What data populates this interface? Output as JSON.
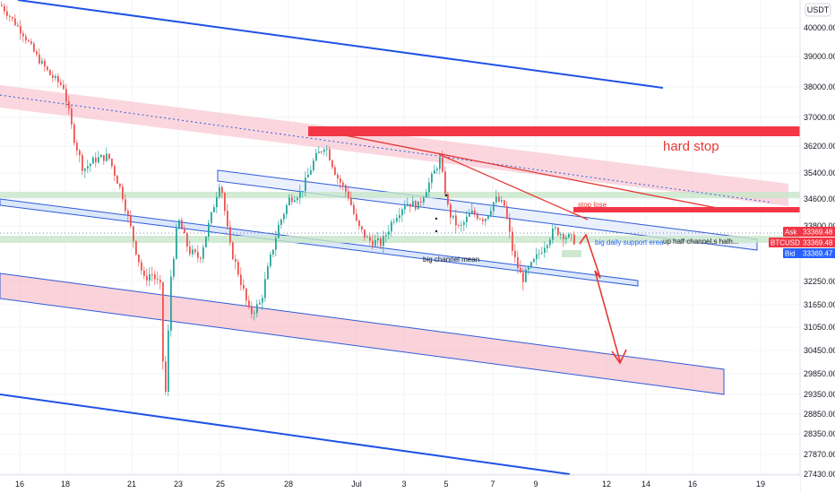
{
  "chart_data": {
    "type": "candlestick",
    "symbol": "BTCUSDT",
    "currency_label": "USDT",
    "y_ticks": [
      40000.0,
      39000.0,
      38000.0,
      37000.0,
      36200.0,
      35400.0,
      34600.0,
      33800.0,
      32250.0,
      31650.0,
      31050.0,
      30450.0,
      29850.0,
      29350.0,
      28850.0,
      28350.0,
      27870.0,
      27430.0
    ],
    "x_tick_labels": [
      "16",
      "18",
      "21",
      "23",
      "25",
      "28",
      "Jul",
      "3",
      "5",
      "7",
      "9",
      "12",
      "14",
      "16",
      "19"
    ],
    "price_tags": [
      {
        "label": "Ask",
        "value": "33369.48",
        "color": "#f23645"
      },
      {
        "label": "BTCUSDT",
        "value": "33369.48",
        "color": "#f23645"
      },
      {
        "label": "Bid",
        "value": "33369.47",
        "color": "#2962ff"
      }
    ],
    "annotations": {
      "hard_stop": "hard stop",
      "stop_lose": "stop lose",
      "big_daily_support": "big daily support erea",
      "up_half_channel": "up half channel,s halh...",
      "big_channel_mean": "big channel mean"
    },
    "colors": {
      "up": "#26a69a",
      "down": "#ef5350",
      "channel_line": "#1e53e5",
      "band_fill": "#f7b4c2",
      "support_fill": "#c8e6c9",
      "stop_red": "#f23645"
    }
  }
}
